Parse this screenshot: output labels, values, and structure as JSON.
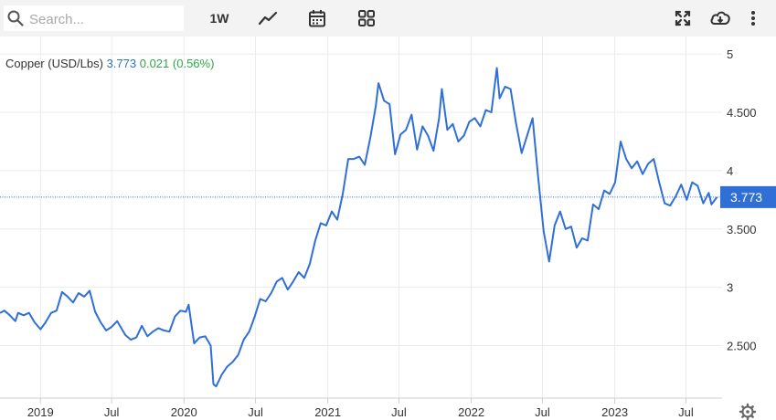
{
  "toolbar": {
    "search_placeholder": "Search...",
    "period_label": "1W",
    "icons": [
      "search-icon",
      "line-chart-icon",
      "calendar-icon",
      "grid-icon",
      "fullscreen-icon",
      "download-icon",
      "more-vertical-icon"
    ]
  },
  "quote": {
    "name": "Copper (USD/Lbs)",
    "price": "3.773",
    "change": "0.021",
    "change_pct": "(0.56%)"
  },
  "colors": {
    "line": "#2f6fd6",
    "positive": "#2ea84a",
    "label_bg": "#2f6fd6",
    "grid": "#ebebeb"
  },
  "settings_icon": "gear-icon",
  "chart_data": {
    "type": "line",
    "title": "Copper (USD/Lbs)",
    "ylim": [
      2.05,
      5.15
    ],
    "y_ticks": [
      {
        "v": 5,
        "label": "5"
      },
      {
        "v": 4.5,
        "label": "4.500"
      },
      {
        "v": 4,
        "label": "4"
      },
      {
        "v": 3.5,
        "label": "3.500"
      },
      {
        "v": 3,
        "label": "3"
      },
      {
        "v": 2.5,
        "label": "2.500"
      }
    ],
    "x_range": [
      "2018-09-20",
      "2023-10-01"
    ],
    "x_ticks": [
      {
        "date": "2019-01-01",
        "label": "2019"
      },
      {
        "date": "2019-07-01",
        "label": "Jul"
      },
      {
        "date": "2020-01-01",
        "label": "2020"
      },
      {
        "date": "2020-07-01",
        "label": "Jul"
      },
      {
        "date": "2021-01-01",
        "label": "2021"
      },
      {
        "date": "2021-07-01",
        "label": "Jul"
      },
      {
        "date": "2022-01-01",
        "label": "2022"
      },
      {
        "date": "2022-07-01",
        "label": "Jul"
      },
      {
        "date": "2023-01-01",
        "label": "2023"
      },
      {
        "date": "2023-07-01",
        "label": "Jul"
      }
    ],
    "grid": true,
    "last_value": 3.773,
    "last_label": "3.773",
    "series": [
      {
        "points": [
          [
            "2018-09-20",
            2.78
          ],
          [
            "2018-10-01",
            2.8
          ],
          [
            "2018-10-15",
            2.76
          ],
          [
            "2018-10-29",
            2.71
          ],
          [
            "2018-11-05",
            2.78
          ],
          [
            "2018-11-19",
            2.76
          ],
          [
            "2018-12-03",
            2.78
          ],
          [
            "2018-12-17",
            2.7
          ],
          [
            "2019-01-01",
            2.64
          ],
          [
            "2019-01-14",
            2.7
          ],
          [
            "2019-01-28",
            2.78
          ],
          [
            "2019-02-11",
            2.8
          ],
          [
            "2019-02-25",
            2.96
          ],
          [
            "2019-03-11",
            2.92
          ],
          [
            "2019-03-25",
            2.87
          ],
          [
            "2019-04-08",
            2.95
          ],
          [
            "2019-04-22",
            2.92
          ],
          [
            "2019-05-06",
            2.97
          ],
          [
            "2019-05-20",
            2.79
          ],
          [
            "2019-06-03",
            2.7
          ],
          [
            "2019-06-17",
            2.63
          ],
          [
            "2019-07-01",
            2.66
          ],
          [
            "2019-07-15",
            2.71
          ],
          [
            "2019-08-05",
            2.59
          ],
          [
            "2019-08-19",
            2.55
          ],
          [
            "2019-09-02",
            2.57
          ],
          [
            "2019-09-16",
            2.67
          ],
          [
            "2019-09-30",
            2.58
          ],
          [
            "2019-10-14",
            2.62
          ],
          [
            "2019-10-28",
            2.65
          ],
          [
            "2019-11-11",
            2.63
          ],
          [
            "2019-11-25",
            2.62
          ],
          [
            "2019-12-09",
            2.75
          ],
          [
            "2019-12-23",
            2.8
          ],
          [
            "2020-01-06",
            2.79
          ],
          [
            "2020-01-13",
            2.85
          ],
          [
            "2020-01-27",
            2.52
          ],
          [
            "2020-02-10",
            2.57
          ],
          [
            "2020-02-24",
            2.58
          ],
          [
            "2020-03-09",
            2.5
          ],
          [
            "2020-03-16",
            2.17
          ],
          [
            "2020-03-23",
            2.15
          ],
          [
            "2020-04-06",
            2.25
          ],
          [
            "2020-04-20",
            2.32
          ],
          [
            "2020-05-04",
            2.36
          ],
          [
            "2020-05-18",
            2.42
          ],
          [
            "2020-06-01",
            2.55
          ],
          [
            "2020-06-15",
            2.62
          ],
          [
            "2020-06-29",
            2.75
          ],
          [
            "2020-07-13",
            2.9
          ],
          [
            "2020-07-27",
            2.88
          ],
          [
            "2020-08-10",
            2.95
          ],
          [
            "2020-08-24",
            3.05
          ],
          [
            "2020-09-07",
            3.08
          ],
          [
            "2020-09-21",
            2.98
          ],
          [
            "2020-10-05",
            3.05
          ],
          [
            "2020-10-19",
            3.13
          ],
          [
            "2020-11-02",
            3.08
          ],
          [
            "2020-11-16",
            3.2
          ],
          [
            "2020-11-30",
            3.4
          ],
          [
            "2020-12-14",
            3.55
          ],
          [
            "2020-12-28",
            3.53
          ],
          [
            "2021-01-11",
            3.65
          ],
          [
            "2021-01-25",
            3.58
          ],
          [
            "2021-02-08",
            3.8
          ],
          [
            "2021-02-22",
            4.1
          ],
          [
            "2021-03-08",
            4.1
          ],
          [
            "2021-03-22",
            4.12
          ],
          [
            "2021-04-05",
            4.05
          ],
          [
            "2021-04-19",
            4.28
          ],
          [
            "2021-05-03",
            4.55
          ],
          [
            "2021-05-10",
            4.75
          ],
          [
            "2021-05-24",
            4.6
          ],
          [
            "2021-06-07",
            4.57
          ],
          [
            "2021-06-21",
            4.14
          ],
          [
            "2021-07-05",
            4.31
          ],
          [
            "2021-07-19",
            4.35
          ],
          [
            "2021-08-02",
            4.48
          ],
          [
            "2021-08-16",
            4.18
          ],
          [
            "2021-08-30",
            4.38
          ],
          [
            "2021-09-13",
            4.3
          ],
          [
            "2021-09-27",
            4.17
          ],
          [
            "2021-10-11",
            4.45
          ],
          [
            "2021-10-18",
            4.7
          ],
          [
            "2021-11-01",
            4.35
          ],
          [
            "2021-11-15",
            4.4
          ],
          [
            "2021-11-29",
            4.25
          ],
          [
            "2021-12-13",
            4.3
          ],
          [
            "2021-12-27",
            4.42
          ],
          [
            "2022-01-10",
            4.45
          ],
          [
            "2022-01-24",
            4.38
          ],
          [
            "2022-02-07",
            4.52
          ],
          [
            "2022-02-21",
            4.5
          ],
          [
            "2022-03-07",
            4.88
          ],
          [
            "2022-03-14",
            4.62
          ],
          [
            "2022-03-28",
            4.72
          ],
          [
            "2022-04-11",
            4.7
          ],
          [
            "2022-04-25",
            4.4
          ],
          [
            "2022-05-09",
            4.15
          ],
          [
            "2022-05-23",
            4.3
          ],
          [
            "2022-06-06",
            4.45
          ],
          [
            "2022-06-20",
            3.95
          ],
          [
            "2022-07-04",
            3.48
          ],
          [
            "2022-07-18",
            3.22
          ],
          [
            "2022-08-01",
            3.53
          ],
          [
            "2022-08-15",
            3.65
          ],
          [
            "2022-08-29",
            3.5
          ],
          [
            "2022-09-12",
            3.52
          ],
          [
            "2022-09-26",
            3.34
          ],
          [
            "2022-10-10",
            3.42
          ],
          [
            "2022-10-24",
            3.4
          ],
          [
            "2022-11-07",
            3.71
          ],
          [
            "2022-11-21",
            3.67
          ],
          [
            "2022-12-05",
            3.83
          ],
          [
            "2022-12-19",
            3.8
          ],
          [
            "2023-01-02",
            3.9
          ],
          [
            "2023-01-16",
            4.25
          ],
          [
            "2023-01-30",
            4.1
          ],
          [
            "2023-02-13",
            4.02
          ],
          [
            "2023-02-27",
            4.08
          ],
          [
            "2023-03-13",
            3.97
          ],
          [
            "2023-03-27",
            4.06
          ],
          [
            "2023-04-10",
            4.1
          ],
          [
            "2023-04-24",
            3.9
          ],
          [
            "2023-05-08",
            3.72
          ],
          [
            "2023-05-22",
            3.7
          ],
          [
            "2023-06-05",
            3.78
          ],
          [
            "2023-06-19",
            3.88
          ],
          [
            "2023-07-03",
            3.75
          ],
          [
            "2023-07-17",
            3.9
          ],
          [
            "2023-07-31",
            3.87
          ],
          [
            "2023-08-14",
            3.72
          ],
          [
            "2023-08-28",
            3.81
          ],
          [
            "2023-09-04",
            3.71
          ],
          [
            "2023-09-18",
            3.773
          ]
        ]
      }
    ]
  }
}
